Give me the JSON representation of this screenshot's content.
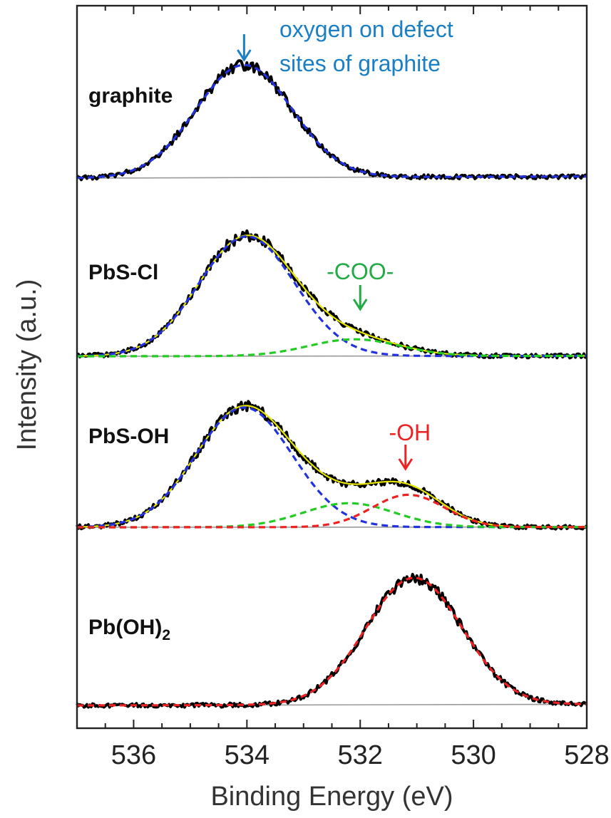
{
  "chart_data": {
    "type": "line",
    "xlabel": "Binding Energy (eV)",
    "ylabel": "Intensity (a.u.)",
    "xlim": [
      537.0,
      528.0
    ],
    "x_reversed": true,
    "x_ticks": [
      536,
      534,
      532,
      530,
      528
    ],
    "y_ticks_shown": false,
    "grid": false,
    "legend": "none",
    "colors": {
      "measured": "#000000",
      "envelope": "#e6e600",
      "baseline": "#9a9a9a",
      "lattice_oxygen_fit": "#2233dd",
      "coo_fit": "#22cc22",
      "oh_fit": "#ee2222",
      "graphite_annotation": "#1a7fc4",
      "coo_annotation": "#22aa44",
      "oh_annotation": "#ee2222"
    },
    "panels": [
      {
        "label_main": "graphite",
        "label_sub": "",
        "peaks": [
          {
            "component": "oxygen on defect sites of graphite",
            "center_eV": 534.05,
            "fwhm_eV": 2.0,
            "height_au": 1.0,
            "color": "#2233dd"
          }
        ],
        "annotations": [
          {
            "lines": [
              "oxygen on defect",
              "sites of graphite"
            ],
            "arrow_at_eV": 534.05,
            "color": "#1a7fc4"
          }
        ]
      },
      {
        "label_main": "PbS-Cl",
        "label_sub": "",
        "peaks": [
          {
            "component": "graphite defect oxygen",
            "center_eV": 534.0,
            "fwhm_eV": 2.0,
            "height_au": 1.0,
            "color": "#2233dd"
          },
          {
            "component": "-COO-",
            "center_eV": 532.1,
            "fwhm_eV": 1.9,
            "height_au": 0.14,
            "color": "#22cc22"
          }
        ],
        "annotations": [
          {
            "lines": [
              "-COO-"
            ],
            "arrow_at_eV": 532.0,
            "color": "#22aa44"
          }
        ]
      },
      {
        "label_main": "PbS-OH",
        "label_sub": "",
        "peaks": [
          {
            "component": "graphite defect oxygen",
            "center_eV": 534.05,
            "fwhm_eV": 2.0,
            "height_au": 1.0,
            "color": "#2233dd"
          },
          {
            "component": "-COO-",
            "center_eV": 532.2,
            "fwhm_eV": 1.9,
            "height_au": 0.2,
            "color": "#22cc22"
          },
          {
            "component": "-OH",
            "center_eV": 531.15,
            "fwhm_eV": 1.5,
            "height_au": 0.27,
            "color": "#ee2222"
          }
        ],
        "annotations": [
          {
            "lines": [
              "-OH"
            ],
            "arrow_at_eV": 531.2,
            "color": "#ee2222"
          }
        ]
      },
      {
        "label_main": "Pb(OH)",
        "label_sub": "2",
        "peaks": [
          {
            "component": "Pb(OH)2",
            "center_eV": 531.05,
            "fwhm_eV": 2.0,
            "height_au": 1.0,
            "color": "#ee2222"
          }
        ],
        "annotations": []
      }
    ]
  }
}
